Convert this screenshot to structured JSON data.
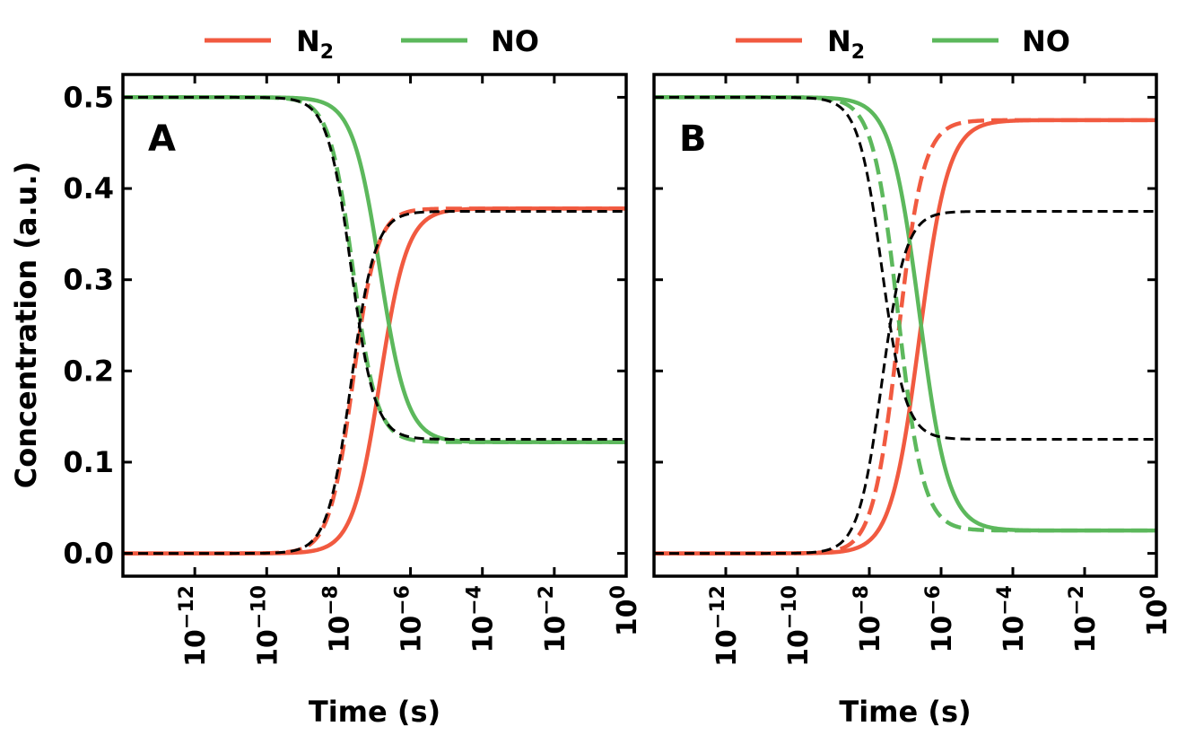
{
  "figure": {
    "ylabel": "Concentration (a.u.)",
    "xlabel": "Time (s)",
    "colors": {
      "N2": "#f15a40",
      "NO": "#5cb85c",
      "reference": "#000000"
    }
  },
  "legend": {
    "n2_main": "N",
    "n2_sub": "2",
    "no": "NO"
  },
  "panels": [
    {
      "letter": "A"
    },
    {
      "letter": "B"
    }
  ],
  "chart_data": [
    {
      "type": "line",
      "panel": "A",
      "xscale": "log",
      "xlim_log10": [
        -14,
        0
      ],
      "ylim": [
        -0.025,
        0.525
      ],
      "x_ticks_log10": [
        -12,
        -10,
        -8,
        -6,
        -4,
        -2,
        0
      ],
      "y_ticks": [
        0.0,
        0.1,
        0.2,
        0.3,
        0.4,
        0.5
      ],
      "legend_position": "top-center, outside",
      "series": [
        {
          "name": "N2",
          "style": "solid",
          "color": "#f15a40",
          "start": 0.0,
          "end": 0.378,
          "center_log10_t": -6.85,
          "width_decades": 0.38
        },
        {
          "name": "NO",
          "style": "solid",
          "color": "#5cb85c",
          "start": 0.5,
          "end": 0.122,
          "center_log10_t": -6.85,
          "width_decades": 0.38
        },
        {
          "name": "N2 (dashed)",
          "style": "dashed",
          "color": "#f15a40",
          "start": 0.0,
          "end": 0.378,
          "center_log10_t": -7.6,
          "width_decades": 0.33
        },
        {
          "name": "NO (dashed)",
          "style": "dashed",
          "color": "#5cb85c",
          "start": 0.5,
          "end": 0.122,
          "center_log10_t": -7.6,
          "width_decades": 0.33
        },
        {
          "name": "reference N2",
          "style": "dashed",
          "color": "#000000",
          "start": 0.0,
          "end": 0.375,
          "center_log10_t": -7.65,
          "width_decades": 0.33
        },
        {
          "name": "reference NO",
          "style": "dashed",
          "color": "#000000",
          "start": 0.5,
          "end": 0.125,
          "center_log10_t": -7.65,
          "width_decades": 0.33
        }
      ]
    },
    {
      "type": "line",
      "panel": "B",
      "xscale": "log",
      "xlim_log10": [
        -14,
        0
      ],
      "ylim": [
        -0.025,
        0.525
      ],
      "x_ticks_log10": [
        -12,
        -10,
        -8,
        -6,
        -4,
        -2,
        0
      ],
      "y_ticks": [
        0.0,
        0.1,
        0.2,
        0.3,
        0.4,
        0.5
      ],
      "legend_position": "top-center, outside",
      "series": [
        {
          "name": "N2",
          "style": "solid",
          "color": "#f15a40",
          "start": 0.0,
          "end": 0.475,
          "center_log10_t": -6.6,
          "width_decades": 0.4
        },
        {
          "name": "NO",
          "style": "solid",
          "color": "#5cb85c",
          "start": 0.5,
          "end": 0.025,
          "center_log10_t": -6.6,
          "width_decades": 0.4
        },
        {
          "name": "N2 (dashed)",
          "style": "dashed",
          "color": "#f15a40",
          "start": 0.0,
          "end": 0.475,
          "center_log10_t": -7.2,
          "width_decades": 0.35
        },
        {
          "name": "NO (dashed)",
          "style": "dashed",
          "color": "#5cb85c",
          "start": 0.5,
          "end": 0.025,
          "center_log10_t": -7.2,
          "width_decades": 0.35
        },
        {
          "name": "reference N2",
          "style": "dashed",
          "color": "#000000",
          "start": 0.0,
          "end": 0.375,
          "center_log10_t": -7.65,
          "width_decades": 0.33
        },
        {
          "name": "reference NO",
          "style": "dashed",
          "color": "#000000",
          "start": 0.5,
          "end": 0.125,
          "center_log10_t": -7.65,
          "width_decades": 0.33
        }
      ]
    }
  ]
}
